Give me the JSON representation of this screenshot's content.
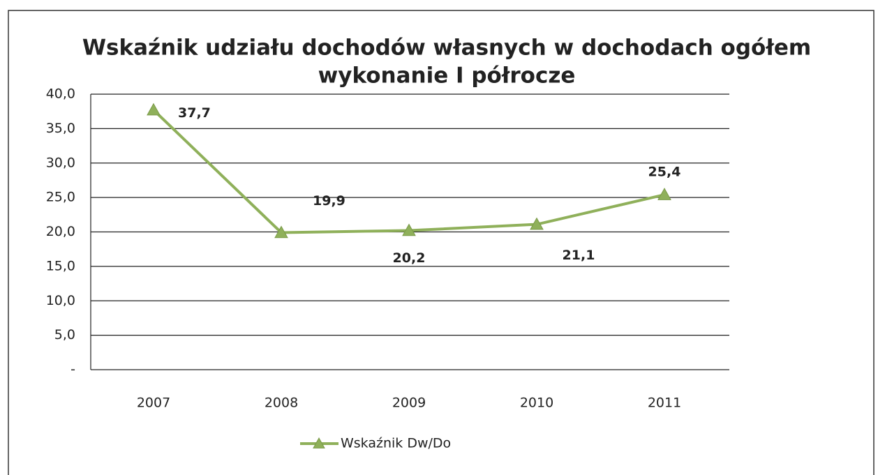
{
  "chart_data": {
    "type": "line",
    "title": "Wskaźnik udziału dochodów własnych w dochodach ogółem",
    "subtitle": "wykonanie I półrocze",
    "categories": [
      "2007",
      "2008",
      "2009",
      "2010",
      "2011"
    ],
    "series": [
      {
        "name": "Wskaźnik Dw/Do",
        "color": "#8fb05a",
        "values": [
          37.7,
          19.9,
          20.2,
          21.1,
          25.4
        ],
        "value_labels": [
          "37,7",
          "19,9",
          "20,2",
          "21,1",
          "25,4"
        ]
      }
    ],
    "ylim": [
      0,
      40
    ],
    "yticks": [
      {
        "value": 0,
        "label": "-"
      },
      {
        "value": 5,
        "label": "5,0"
      },
      {
        "value": 10,
        "label": "10,0"
      },
      {
        "value": 15,
        "label": "15,0"
      },
      {
        "value": 20,
        "label": "20,0"
      },
      {
        "value": 25,
        "label": "25,0"
      },
      {
        "value": 30,
        "label": "30,0"
      },
      {
        "value": 35,
        "label": "35,0"
      },
      {
        "value": 40,
        "label": "40,0"
      }
    ],
    "grid": true,
    "legend": "bottom"
  }
}
